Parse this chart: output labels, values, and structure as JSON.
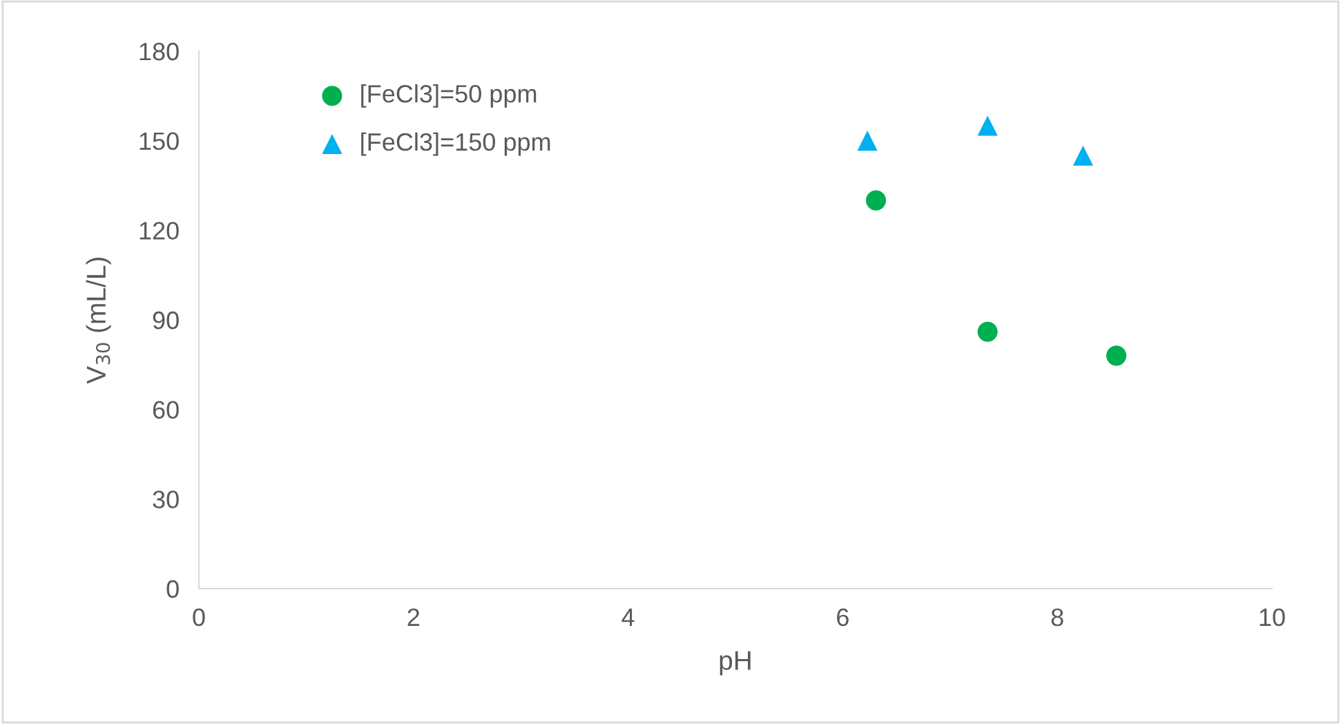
{
  "chart_data": {
    "type": "scatter",
    "xlabel": "pH",
    "ylabel": "V$_{30}$ (mL/L)",
    "series": [
      {
        "name": "[FeCl3]=50 ppm",
        "color": "#00b050",
        "marker": "circle",
        "x": [
          6.31,
          7.35,
          8.55
        ],
        "values": [
          130,
          86,
          78
        ]
      },
      {
        "name": "[FeCl3]=150 ppm",
        "color": "#00b0f0",
        "marker": "triangle",
        "x": [
          6.23,
          7.35,
          8.24
        ],
        "values": [
          150,
          155,
          145
        ]
      }
    ],
    "xlim": [
      0,
      10
    ],
    "xticks": [
      0,
      2,
      4,
      6,
      8,
      10
    ],
    "ylim": [
      0,
      180
    ],
    "yticks": [
      0,
      30,
      60,
      90,
      120,
      150,
      180
    ],
    "grid": false,
    "legend": "top left"
  }
}
